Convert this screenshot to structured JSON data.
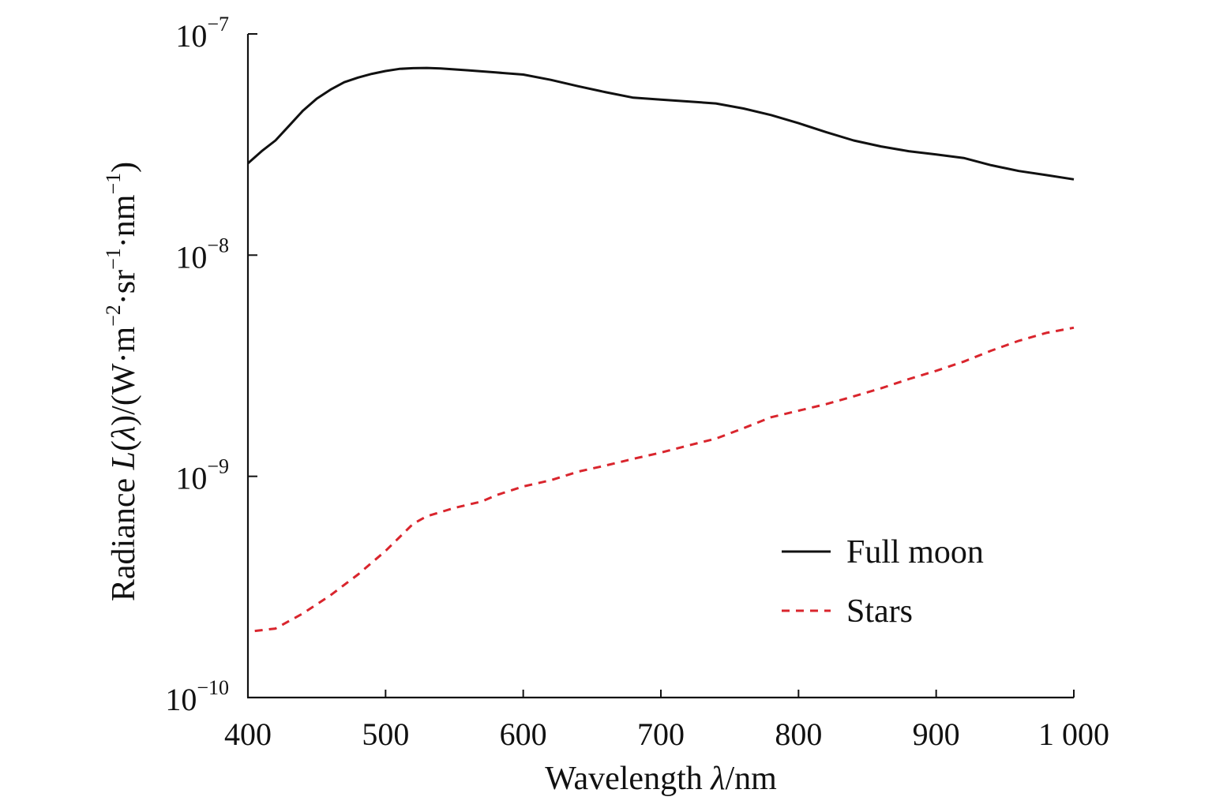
{
  "chart_data": {
    "type": "line",
    "x_label_parts": [
      "Wavelength ",
      "λ",
      "/nm"
    ],
    "y_label_parts": [
      "Radiance ",
      "L",
      "(",
      "λ",
      ")/(W·m",
      "−2",
      "·sr",
      "−1",
      "·nm",
      "−1",
      ")"
    ],
    "xlim": [
      400,
      1000
    ],
    "ylim": [
      1e-10,
      1e-07
    ],
    "yscale": "log",
    "x_ticks": [
      {
        "value": 400,
        "label": "400"
      },
      {
        "value": 500,
        "label": "500"
      },
      {
        "value": 600,
        "label": "600"
      },
      {
        "value": 700,
        "label": "700"
      },
      {
        "value": 800,
        "label": "800"
      },
      {
        "value": 900,
        "label": "900"
      },
      {
        "value": 1000,
        "label": "1 000"
      }
    ],
    "y_ticks": [
      {
        "value": 1e-10,
        "base": "10",
        "exp": "−10"
      },
      {
        "value": 1e-09,
        "base": "10",
        "exp": "−9"
      },
      {
        "value": 1e-08,
        "base": "10",
        "exp": "−8"
      },
      {
        "value": 1e-07,
        "base": "10",
        "exp": "−7"
      }
    ],
    "grid": false,
    "legend_position": "bottom-right",
    "series": [
      {
        "name": "Full moon",
        "color": "#111111",
        "style": "solid",
        "x": [
          400,
          410,
          420,
          430,
          440,
          450,
          460,
          470,
          480,
          490,
          500,
          510,
          520,
          530,
          540,
          560,
          580,
          600,
          620,
          640,
          660,
          680,
          700,
          720,
          740,
          760,
          780,
          800,
          820,
          840,
          860,
          880,
          900,
          920,
          940,
          960,
          980,
          1000
        ],
        "y": [
          2.6e-08,
          2.95e-08,
          3.3e-08,
          3.85e-08,
          4.5e-08,
          5.1e-08,
          5.6e-08,
          6.05e-08,
          6.35e-08,
          6.6e-08,
          6.8e-08,
          6.95e-08,
          7e-08,
          7.02e-08,
          6.98e-08,
          6.85e-08,
          6.7e-08,
          6.55e-08,
          6.2e-08,
          5.8e-08,
          5.45e-08,
          5.15e-08,
          5.05e-08,
          4.95e-08,
          4.85e-08,
          4.6e-08,
          4.3e-08,
          3.95e-08,
          3.6e-08,
          3.3e-08,
          3.1e-08,
          2.95e-08,
          2.85e-08,
          2.75e-08,
          2.55e-08,
          2.4e-08,
          2.3e-08,
          2.2e-08
        ]
      },
      {
        "name": "Stars",
        "color": "#d9252d",
        "style": "dashed",
        "x": [
          405,
          420,
          440,
          460,
          480,
          500,
          510,
          520,
          530,
          550,
          570,
          580,
          600,
          620,
          640,
          660,
          680,
          700,
          720,
          740,
          760,
          780,
          800,
          820,
          840,
          860,
          880,
          900,
          920,
          940,
          960,
          980,
          1000
        ],
        "y": [
          2e-10,
          2.05e-10,
          2.4e-10,
          2.9e-10,
          3.6e-10,
          4.6e-10,
          5.3e-10,
          6.1e-10,
          6.6e-10,
          7.2e-10,
          7.7e-10,
          8.2e-10,
          9e-10,
          9.6e-10,
          1.05e-09,
          1.12e-09,
          1.2e-09,
          1.28e-09,
          1.38e-09,
          1.48e-09,
          1.65e-09,
          1.85e-09,
          1.98e-09,
          2.12e-09,
          2.3e-09,
          2.5e-09,
          2.75e-09,
          3e-09,
          3.3e-09,
          3.7e-09,
          4.1e-09,
          4.45e-09,
          4.7e-09
        ]
      }
    ]
  }
}
